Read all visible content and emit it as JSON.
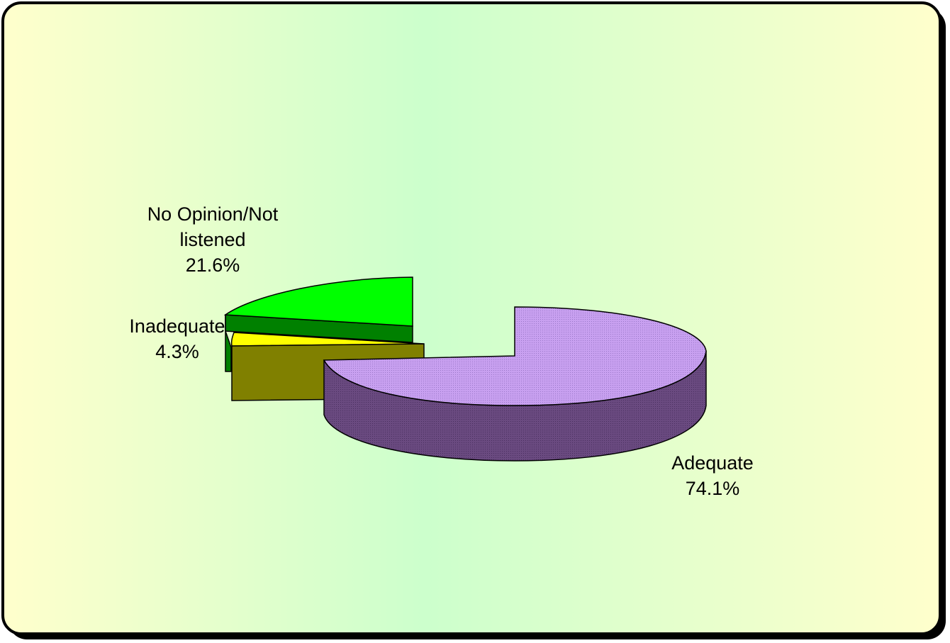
{
  "chart_data": {
    "type": "pie",
    "style": "3d-exploded",
    "legend": "none",
    "slices": [
      {
        "label_lines": [
          "Adequate"
        ],
        "value_text": "74.1%",
        "value": 74.1,
        "color": "#c8a0f0"
      },
      {
        "label_lines": [
          "Inadequate"
        ],
        "value_text": "4.3%",
        "value": 4.3,
        "color": "#ffff00"
      },
      {
        "label_lines": [
          "No Opinion/Not",
          "listened"
        ],
        "value_text": "21.6%",
        "value": 21.6,
        "color": "#00ff00"
      }
    ]
  },
  "colors": {
    "background_outer": "#ffffcc",
    "background_center": "#ccffcc",
    "adequate_side": "#6a4a80",
    "inadequate_side": "#808000",
    "no_opinion_side": "#008000"
  }
}
